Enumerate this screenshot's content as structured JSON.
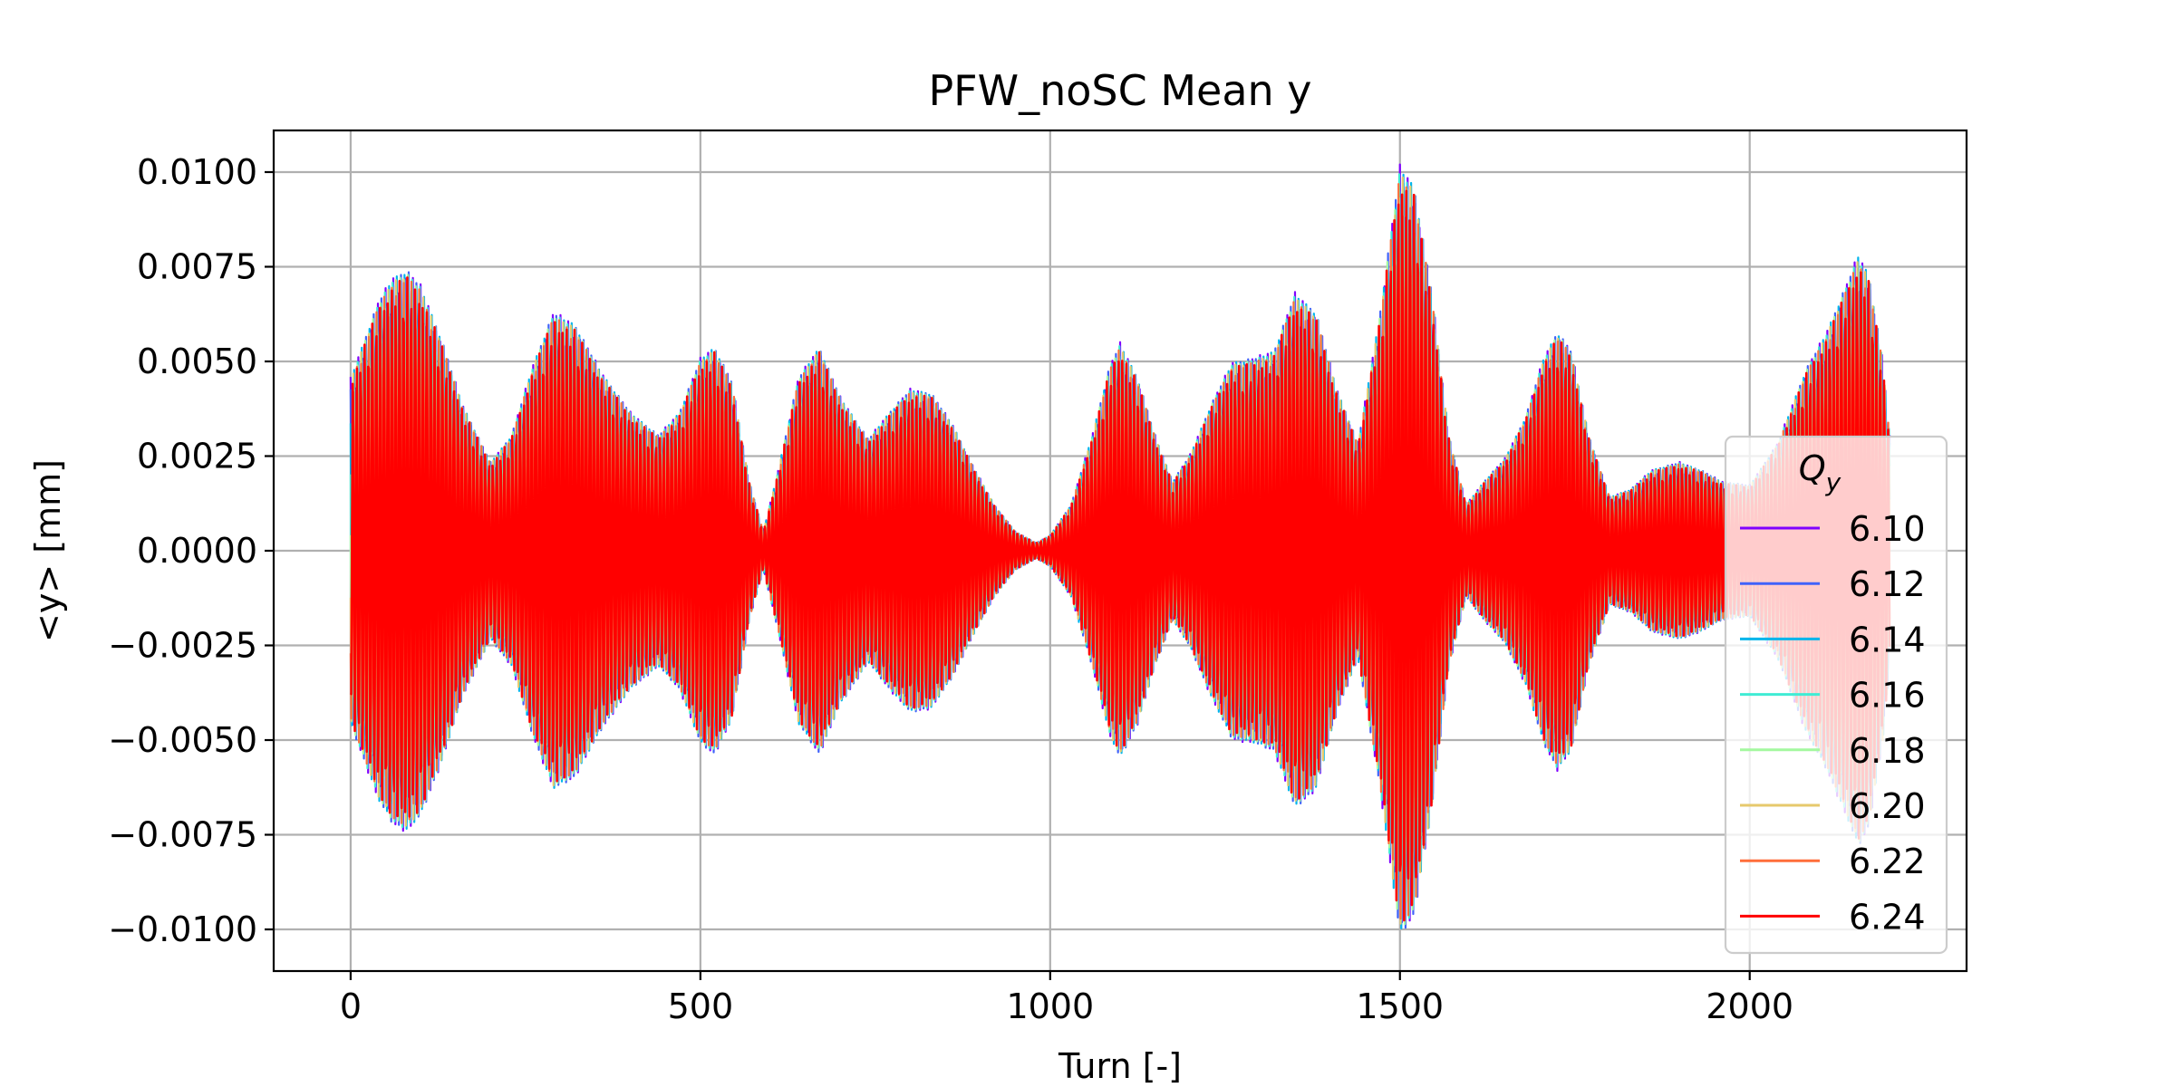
{
  "chart_data": {
    "type": "line",
    "title": "PFW_noSC Mean y",
    "xlabel": "Turn [-]",
    "ylabel": "<y> [mm]",
    "xlim": [
      -110,
      2310
    ],
    "ylim": [
      -0.0111,
      0.0111
    ],
    "x_ticks": [
      0,
      500,
      1000,
      1500,
      2000
    ],
    "x_tick_labels": [
      "0",
      "500",
      "1000",
      "1500",
      "2000"
    ],
    "y_ticks": [
      0.01,
      0.0075,
      0.005,
      0.0025,
      0.0,
      -0.0025,
      -0.005,
      -0.0075,
      -0.01
    ],
    "y_tick_labels": [
      "0.0100",
      "0.0075",
      "0.0050",
      "0.0025",
      "0.0000",
      "−0.0025",
      "−0.0050",
      "−0.0075",
      "−0.0100"
    ],
    "grid": true,
    "legend": {
      "title": "Q_y",
      "title_main": "Q",
      "title_sub": "y",
      "placement": "right"
    },
    "turns": 2200,
    "envelope": {
      "turn": [
        0,
        20,
        40,
        60,
        80,
        100,
        130,
        160,
        200,
        230,
        260,
        290,
        320,
        360,
        400,
        440,
        470,
        500,
        520,
        545,
        570,
        590,
        610,
        640,
        670,
        700,
        740,
        770,
        800,
        830,
        860,
        890,
        920,
        950,
        980,
        1000,
        1030,
        1060,
        1085,
        1100,
        1125,
        1150,
        1175,
        1200,
        1230,
        1260,
        1290,
        1320,
        1350,
        1380,
        1410,
        1440,
        1470,
        1500,
        1520,
        1545,
        1570,
        1595,
        1620,
        1650,
        1680,
        1705,
        1725,
        1745,
        1770,
        1800,
        1830,
        1860,
        1900,
        1930,
        1960,
        2000,
        2040,
        2080,
        2110,
        2140,
        2155,
        2170,
        2190,
        2200
      ],
      "amplitude": [
        0.0045,
        0.0055,
        0.0065,
        0.0071,
        0.0073,
        0.0069,
        0.0055,
        0.0038,
        0.0023,
        0.003,
        0.0048,
        0.0062,
        0.0059,
        0.0046,
        0.0036,
        0.003,
        0.0036,
        0.005,
        0.0053,
        0.0044,
        0.0018,
        0.0005,
        0.002,
        0.0045,
        0.0053,
        0.004,
        0.0029,
        0.0036,
        0.0042,
        0.0041,
        0.0033,
        0.0022,
        0.0012,
        0.0005,
        0.0002,
        0.0004,
        0.0012,
        0.003,
        0.0048,
        0.0054,
        0.0045,
        0.003,
        0.0018,
        0.0025,
        0.0038,
        0.0049,
        0.005,
        0.0052,
        0.0067,
        0.0062,
        0.0042,
        0.0028,
        0.006,
        0.01,
        0.0095,
        0.0068,
        0.003,
        0.0012,
        0.0018,
        0.0024,
        0.0035,
        0.005,
        0.0057,
        0.0052,
        0.003,
        0.0014,
        0.0016,
        0.0021,
        0.0023,
        0.0021,
        0.0018,
        0.0017,
        0.0028,
        0.0047,
        0.0057,
        0.007,
        0.0077,
        0.0072,
        0.005,
        0.003
      ]
    },
    "series": [
      {
        "name": "6.10",
        "color": "#8000ff"
      },
      {
        "name": "6.12",
        "color": "#4062fa"
      },
      {
        "name": "6.14",
        "color": "#00b5eb"
      },
      {
        "name": "6.16",
        "color": "#40ecd4"
      },
      {
        "name": "6.18",
        "color": "#a4f89f"
      },
      {
        "name": "6.20",
        "color": "#e6c96c"
      },
      {
        "name": "6.22",
        "color": "#ff6e3a"
      },
      {
        "name": "6.24",
        "color": "#ff0000"
      }
    ]
  }
}
